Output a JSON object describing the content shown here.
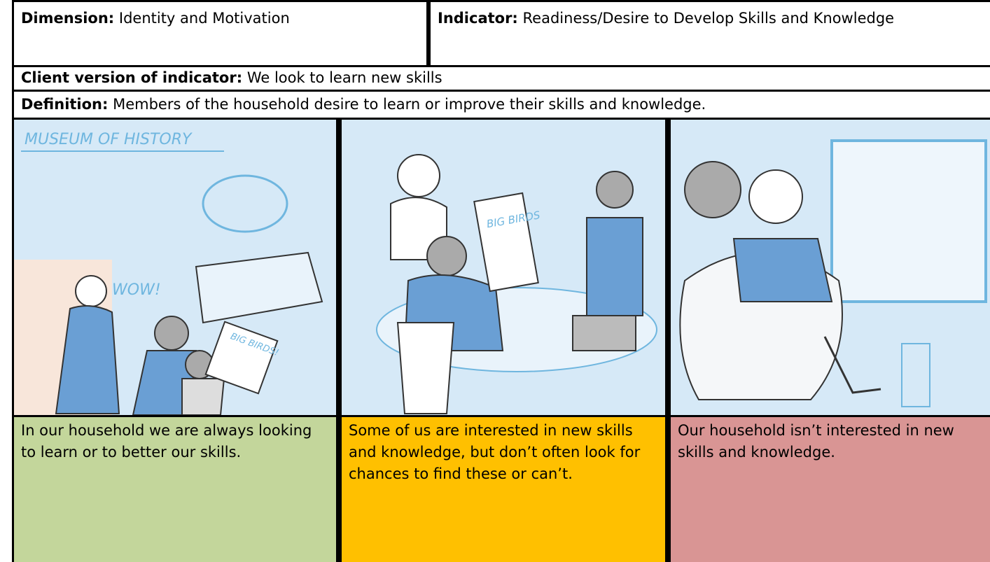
{
  "header": {
    "dimension_label": "Dimension:",
    "dimension": "Identity and Motivation",
    "indicator_label": "Indicator:",
    "indicator": "Readiness/Desire to Develop Skills and Knowledge"
  },
  "client_version": {
    "label": "Client version of indicator:",
    "text": "We look to learn new skills"
  },
  "definition": {
    "label": "Definition:",
    "text": "Members of the household desire to learn or improve their skills and knowledge."
  },
  "illustration_texts": [
    "MUSEUM OF HISTORY",
    "WOW!",
    "BIG BIRDS!",
    "BIG BIRDS"
  ],
  "options": [
    {
      "text": "In our household we are always looking to learn or to better our skills.",
      "color": "#c3d69b"
    },
    {
      "text": "Some of us are interested in new skills and knowledge, but don’t often look for chances to find these or can’t.",
      "color": "#ffc000"
    },
    {
      "text": "Our household isn’t interested in new skills and knowledge.",
      "color": "#d99594"
    }
  ]
}
